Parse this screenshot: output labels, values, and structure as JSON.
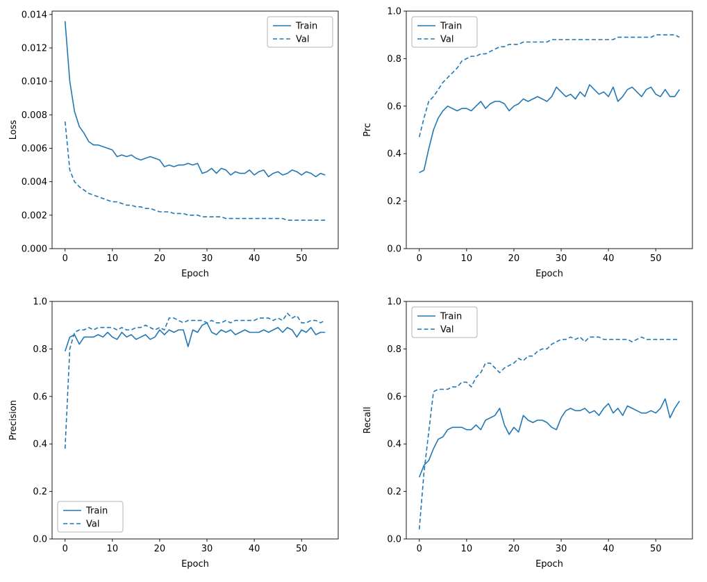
{
  "figure": {
    "background": "#ffffff",
    "line_color": "#1f77b4",
    "spine_color": "#000000",
    "legend_border_color": "#b3b3b3"
  },
  "chart_data": [
    {
      "name": "loss",
      "type": "line",
      "title": "",
      "xlabel": "Epoch",
      "ylabel": "Loss",
      "xlim": [
        -2.75,
        57.75
      ],
      "ylim": [
        0,
        0.0142
      ],
      "grid": false,
      "xticks": [
        0,
        10,
        20,
        30,
        40,
        50
      ],
      "ytick_values": [
        0,
        0.002,
        0.004,
        0.006,
        0.008,
        0.01,
        0.012,
        0.014
      ],
      "ytick_labels": [
        "0.000",
        "0.002",
        "0.004",
        "0.006",
        "0.008",
        "0.010",
        "0.012",
        "0.014"
      ],
      "legend": {
        "position": "upper-right",
        "entries": [
          "Train",
          "Val"
        ]
      },
      "series": [
        {
          "name": "Train",
          "style": "solid",
          "values": [
            0.0136,
            0.01,
            0.0082,
            0.0073,
            0.0069,
            0.0064,
            0.0062,
            0.0062,
            0.0061,
            0.006,
            0.0059,
            0.0055,
            0.0056,
            0.0055,
            0.0056,
            0.0054,
            0.0053,
            0.0054,
            0.0055,
            0.0054,
            0.0053,
            0.0049,
            0.005,
            0.0049,
            0.005,
            0.005,
            0.0051,
            0.005,
            0.0051,
            0.0045,
            0.0046,
            0.0048,
            0.0045,
            0.0048,
            0.0047,
            0.0044,
            0.0046,
            0.0045,
            0.0045,
            0.0047,
            0.0044,
            0.0046,
            0.0047,
            0.0043,
            0.0045,
            0.0046,
            0.0044,
            0.0045,
            0.0047,
            0.0046,
            0.0044,
            0.0046,
            0.0045,
            0.0043,
            0.0045,
            0.0044
          ]
        },
        {
          "name": "Val",
          "style": "dashed",
          "values": [
            0.0076,
            0.0047,
            0.004,
            0.0037,
            0.0035,
            0.0033,
            0.0032,
            0.0031,
            0.003,
            0.0029,
            0.0028,
            0.0028,
            0.0027,
            0.0026,
            0.0026,
            0.0025,
            0.0025,
            0.0024,
            0.0024,
            0.0023,
            0.0022,
            0.0022,
            0.0022,
            0.0021,
            0.0021,
            0.0021,
            0.002,
            0.002,
            0.002,
            0.0019,
            0.0019,
            0.0019,
            0.0019,
            0.0019,
            0.0018,
            0.0018,
            0.0018,
            0.0018,
            0.0018,
            0.0018,
            0.0018,
            0.0018,
            0.0018,
            0.0018,
            0.0018,
            0.0018,
            0.0018,
            0.0017,
            0.0017,
            0.0017,
            0.0017,
            0.0017,
            0.0017,
            0.0017,
            0.0017,
            0.0017
          ]
        }
      ]
    },
    {
      "name": "prc",
      "type": "line",
      "title": "",
      "xlabel": "Epoch",
      "ylabel": "Prc",
      "xlim": [
        -2.75,
        57.75
      ],
      "ylim": [
        0,
        1
      ],
      "grid": false,
      "xticks": [
        0,
        10,
        20,
        30,
        40,
        50
      ],
      "ytick_values": [
        0,
        0.2,
        0.4,
        0.6,
        0.8,
        1.0
      ],
      "ytick_labels": [
        "0.0",
        "0.2",
        "0.4",
        "0.6",
        "0.8",
        "1.0"
      ],
      "legend": {
        "position": "upper-left",
        "entries": [
          "Train",
          "Val"
        ]
      },
      "series": [
        {
          "name": "Train",
          "style": "solid",
          "values": [
            0.32,
            0.33,
            0.42,
            0.5,
            0.55,
            0.58,
            0.6,
            0.59,
            0.58,
            0.59,
            0.59,
            0.58,
            0.6,
            0.62,
            0.59,
            0.61,
            0.62,
            0.62,
            0.61,
            0.58,
            0.6,
            0.61,
            0.63,
            0.62,
            0.63,
            0.64,
            0.63,
            0.62,
            0.64,
            0.68,
            0.66,
            0.64,
            0.65,
            0.63,
            0.66,
            0.64,
            0.69,
            0.67,
            0.65,
            0.66,
            0.64,
            0.68,
            0.62,
            0.64,
            0.67,
            0.68,
            0.66,
            0.64,
            0.67,
            0.68,
            0.65,
            0.64,
            0.67,
            0.64,
            0.64,
            0.67
          ]
        },
        {
          "name": "Val",
          "style": "dashed",
          "values": [
            0.47,
            0.55,
            0.62,
            0.64,
            0.67,
            0.7,
            0.72,
            0.74,
            0.76,
            0.79,
            0.8,
            0.81,
            0.81,
            0.82,
            0.82,
            0.83,
            0.84,
            0.85,
            0.85,
            0.86,
            0.86,
            0.86,
            0.87,
            0.87,
            0.87,
            0.87,
            0.87,
            0.87,
            0.88,
            0.88,
            0.88,
            0.88,
            0.88,
            0.88,
            0.88,
            0.88,
            0.88,
            0.88,
            0.88,
            0.88,
            0.88,
            0.88,
            0.89,
            0.89,
            0.89,
            0.89,
            0.89,
            0.89,
            0.89,
            0.89,
            0.9,
            0.9,
            0.9,
            0.9,
            0.9,
            0.89
          ]
        }
      ]
    },
    {
      "name": "precision",
      "type": "line",
      "title": "",
      "xlabel": "Epoch",
      "ylabel": "Precision",
      "xlim": [
        -2.75,
        57.75
      ],
      "ylim": [
        0,
        1
      ],
      "grid": false,
      "xticks": [
        0,
        10,
        20,
        30,
        40,
        50
      ],
      "ytick_values": [
        0,
        0.2,
        0.4,
        0.6,
        0.8,
        1.0
      ],
      "ytick_labels": [
        "0.0",
        "0.2",
        "0.4",
        "0.6",
        "0.8",
        "1.0"
      ],
      "legend": {
        "position": "lower-left",
        "entries": [
          "Train",
          "Val"
        ]
      },
      "series": [
        {
          "name": "Train",
          "style": "solid",
          "values": [
            0.79,
            0.85,
            0.86,
            0.82,
            0.85,
            0.85,
            0.85,
            0.86,
            0.85,
            0.87,
            0.85,
            0.84,
            0.87,
            0.85,
            0.86,
            0.84,
            0.85,
            0.86,
            0.84,
            0.85,
            0.88,
            0.86,
            0.88,
            0.87,
            0.88,
            0.88,
            0.81,
            0.88,
            0.87,
            0.9,
            0.91,
            0.87,
            0.86,
            0.88,
            0.87,
            0.88,
            0.86,
            0.87,
            0.88,
            0.87,
            0.87,
            0.87,
            0.88,
            0.87,
            0.88,
            0.89,
            0.87,
            0.89,
            0.88,
            0.85,
            0.88,
            0.87,
            0.89,
            0.86,
            0.87,
            0.87
          ]
        },
        {
          "name": "Val",
          "style": "dashed",
          "values": [
            0.38,
            0.8,
            0.87,
            0.88,
            0.88,
            0.89,
            0.88,
            0.89,
            0.89,
            0.89,
            0.89,
            0.88,
            0.89,
            0.88,
            0.88,
            0.89,
            0.89,
            0.9,
            0.89,
            0.88,
            0.89,
            0.88,
            0.93,
            0.93,
            0.92,
            0.91,
            0.92,
            0.92,
            0.92,
            0.92,
            0.91,
            0.92,
            0.91,
            0.91,
            0.92,
            0.91,
            0.92,
            0.92,
            0.92,
            0.92,
            0.92,
            0.93,
            0.93,
            0.93,
            0.92,
            0.93,
            0.92,
            0.95,
            0.93,
            0.94,
            0.91,
            0.91,
            0.92,
            0.92,
            0.91,
            0.92
          ]
        }
      ]
    },
    {
      "name": "recall",
      "type": "line",
      "title": "",
      "xlabel": "Epoch",
      "ylabel": "Recall",
      "xlim": [
        -2.75,
        57.75
      ],
      "ylim": [
        0,
        1
      ],
      "grid": false,
      "xticks": [
        0,
        10,
        20,
        30,
        40,
        50
      ],
      "ytick_values": [
        0,
        0.2,
        0.4,
        0.6,
        0.8,
        1.0
      ],
      "ytick_labels": [
        "0.0",
        "0.2",
        "0.4",
        "0.6",
        "0.8",
        "1.0"
      ],
      "legend": {
        "position": "upper-left",
        "entries": [
          "Train",
          "Val"
        ]
      },
      "series": [
        {
          "name": "Train",
          "style": "solid",
          "values": [
            0.26,
            0.31,
            0.33,
            0.38,
            0.42,
            0.43,
            0.46,
            0.47,
            0.47,
            0.47,
            0.46,
            0.46,
            0.48,
            0.46,
            0.5,
            0.51,
            0.52,
            0.55,
            0.48,
            0.44,
            0.47,
            0.45,
            0.52,
            0.5,
            0.49,
            0.5,
            0.5,
            0.49,
            0.47,
            0.46,
            0.51,
            0.54,
            0.55,
            0.54,
            0.54,
            0.55,
            0.53,
            0.54,
            0.52,
            0.55,
            0.57,
            0.53,
            0.55,
            0.52,
            0.56,
            0.55,
            0.54,
            0.53,
            0.53,
            0.54,
            0.53,
            0.55,
            0.59,
            0.51,
            0.55,
            0.58
          ]
        },
        {
          "name": "Val",
          "style": "dashed",
          "values": [
            0.04,
            0.28,
            0.45,
            0.62,
            0.63,
            0.63,
            0.63,
            0.64,
            0.64,
            0.66,
            0.66,
            0.64,
            0.68,
            0.7,
            0.74,
            0.74,
            0.72,
            0.7,
            0.72,
            0.73,
            0.74,
            0.76,
            0.75,
            0.77,
            0.77,
            0.79,
            0.8,
            0.8,
            0.82,
            0.83,
            0.84,
            0.84,
            0.85,
            0.84,
            0.85,
            0.83,
            0.85,
            0.85,
            0.85,
            0.84,
            0.84,
            0.84,
            0.84,
            0.84,
            0.84,
            0.83,
            0.84,
            0.85,
            0.84,
            0.84,
            0.84,
            0.84,
            0.84,
            0.84,
            0.84,
            0.84
          ]
        }
      ]
    }
  ]
}
